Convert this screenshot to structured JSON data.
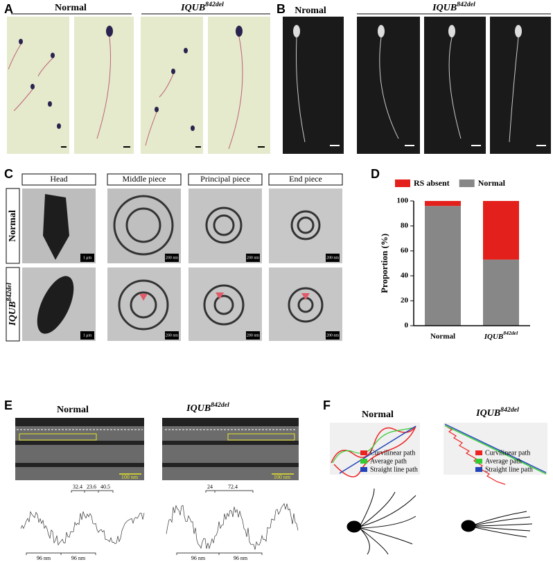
{
  "panels": {
    "A": {
      "letter": "A",
      "groups": [
        "Normal",
        "IQUB842del"
      ]
    },
    "B": {
      "letter": "B",
      "groups": [
        "Nromal",
        "IQUB842del"
      ]
    },
    "C": {
      "letter": "C",
      "columns": [
        "Head",
        "Middle piece",
        "Principal piece",
        "End piece"
      ],
      "rows": [
        "Normal",
        "IQUB842del"
      ],
      "scales": [
        "1 μm",
        "200 nm"
      ]
    },
    "D": {
      "letter": "D"
    },
    "E": {
      "letter": "E",
      "groups": [
        "Normal",
        "IQUB842del"
      ],
      "scale": "100 nm",
      "normal_distances": [
        "32.4",
        "23.6",
        "40.5"
      ],
      "mutant_distances": [
        "24",
        "72.4"
      ],
      "period": "96 nm"
    },
    "F": {
      "letter": "F",
      "groups": [
        "Normal",
        "IQUB842del"
      ],
      "legend": [
        "Curvilinear path",
        "Average path",
        "Straight line path"
      ]
    }
  },
  "chart_data": {
    "type": "stacked_bar",
    "categories": [
      "Normal",
      "IQUB842del"
    ],
    "series": [
      {
        "name": "RS absent",
        "color": "#e3201b",
        "values": [
          4,
          47
        ]
      },
      {
        "name": "Normal",
        "color": "#878787",
        "values": [
          96,
          53
        ]
      }
    ],
    "ylabel": "Proportion (%)",
    "ylim": [
      0,
      100
    ],
    "yticks": [
      0,
      20,
      40,
      60,
      80,
      100
    ],
    "legend": "top"
  }
}
